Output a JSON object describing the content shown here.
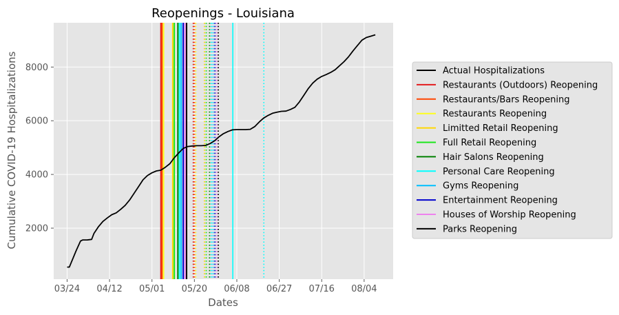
{
  "chart_data": {
    "type": "line",
    "title": "Reopenings - Louisiana",
    "xlabel": "Dates",
    "ylabel": "Cumulative COVID-19 Hospitalizations",
    "x_ticks": [
      "03/24",
      "04/12",
      "05/01",
      "05/20",
      "06/08",
      "06/27",
      "07/16",
      "08/04"
    ],
    "x_tick_days": [
      0,
      19,
      38,
      57,
      76,
      95,
      114,
      133
    ],
    "x_start_date": "2020-03-24",
    "xlim_days": [
      -6,
      146
    ],
    "ylim": [
      100,
      9650
    ],
    "y_ticks": [
      2000,
      4000,
      6000,
      8000
    ],
    "grid": true,
    "legend_position": "right",
    "series": [
      {
        "name": "Actual Hospitalizations",
        "color": "#000000",
        "x_days": [
          0,
          1,
          3,
          4,
          6,
          7,
          9,
          11,
          12,
          14,
          16,
          18,
          20,
          22,
          24,
          26,
          28,
          30,
          32,
          34,
          36,
          38,
          40,
          42,
          44,
          46,
          48,
          50,
          52,
          54,
          56,
          58,
          60,
          62,
          64,
          66,
          68,
          70,
          72,
          74,
          76,
          78,
          80,
          82,
          84,
          86,
          88,
          90,
          92,
          94,
          96,
          98,
          100,
          102,
          104,
          106,
          108,
          110,
          112,
          114,
          116,
          118,
          120,
          122,
          124,
          126,
          128,
          130,
          132,
          134,
          136,
          138
        ],
        "values": [
          550,
          550,
          950,
          1150,
          1520,
          1560,
          1560,
          1580,
          1800,
          2050,
          2250,
          2380,
          2500,
          2570,
          2700,
          2850,
          3050,
          3300,
          3550,
          3800,
          3960,
          4060,
          4130,
          4160,
          4270,
          4400,
          4620,
          4800,
          4970,
          5040,
          5060,
          5070,
          5070,
          5080,
          5150,
          5250,
          5400,
          5520,
          5600,
          5660,
          5670,
          5670,
          5670,
          5680,
          5780,
          5950,
          6100,
          6200,
          6280,
          6320,
          6350,
          6360,
          6420,
          6500,
          6700,
          6950,
          7200,
          7400,
          7550,
          7650,
          7720,
          7800,
          7900,
          8050,
          8200,
          8380,
          8600,
          8800,
          9000,
          9100,
          9150,
          9200
        ]
      }
    ],
    "reopenings": [
      {
        "name": "Restaurants (Outdoors) Reopening",
        "color": "#e31a1c",
        "day": 42.0,
        "dotted_day": 56.5
      },
      {
        "name": "Restaurants/Bars Reopening",
        "color": "#ff4500",
        "day": 42.5,
        "dotted_day": 57.0
      },
      {
        "name": "Restaurants Reopening",
        "color": "#ffff1a",
        "day": 43.2,
        "dotted_day": 57.6
      },
      {
        "name": "Limitted Retail Reopening",
        "color": "#ffd700",
        "day": 47.3,
        "dotted_day": 61.5
      },
      {
        "name": "Full Retail Reopening",
        "color": "#19e619",
        "day": 48.0,
        "dotted_day": 62.3
      },
      {
        "name": "Hair Salons Reopening",
        "color": "#008000",
        "day": 49.6,
        "dotted_day": 63.8
      },
      {
        "name": "Personal Care Reopening",
        "color": "#00ffff",
        "day": 50.3,
        "dotted_day": 64.6
      },
      {
        "name": "Gyms Reopening",
        "color": "#00bfff",
        "day": 51.1,
        "dotted_day": 65.4
      },
      {
        "name": "Entertainment Reopening",
        "color": "#0000cd",
        "day": 52.0,
        "dotted_day": 66.2
      },
      {
        "name": "Houses of Worship Reopening",
        "color": "#ee82ee",
        "day": 52.8,
        "dotted_day": 67.0
      },
      {
        "name": "Parks Reopening",
        "color": "#000000",
        "day": 53.5,
        "dotted_day": 67.7
      }
    ],
    "extra_lines": [
      {
        "color": "#00ffff",
        "day": 74.2,
        "style": "solid"
      },
      {
        "color": "#00ffff",
        "day": 88.1,
        "style": "dotted"
      }
    ]
  }
}
